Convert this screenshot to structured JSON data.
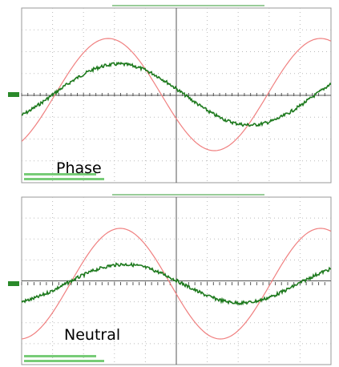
{
  "panels": [
    {
      "label": "Phase"
    },
    {
      "label": "Neutral"
    }
  ]
}
